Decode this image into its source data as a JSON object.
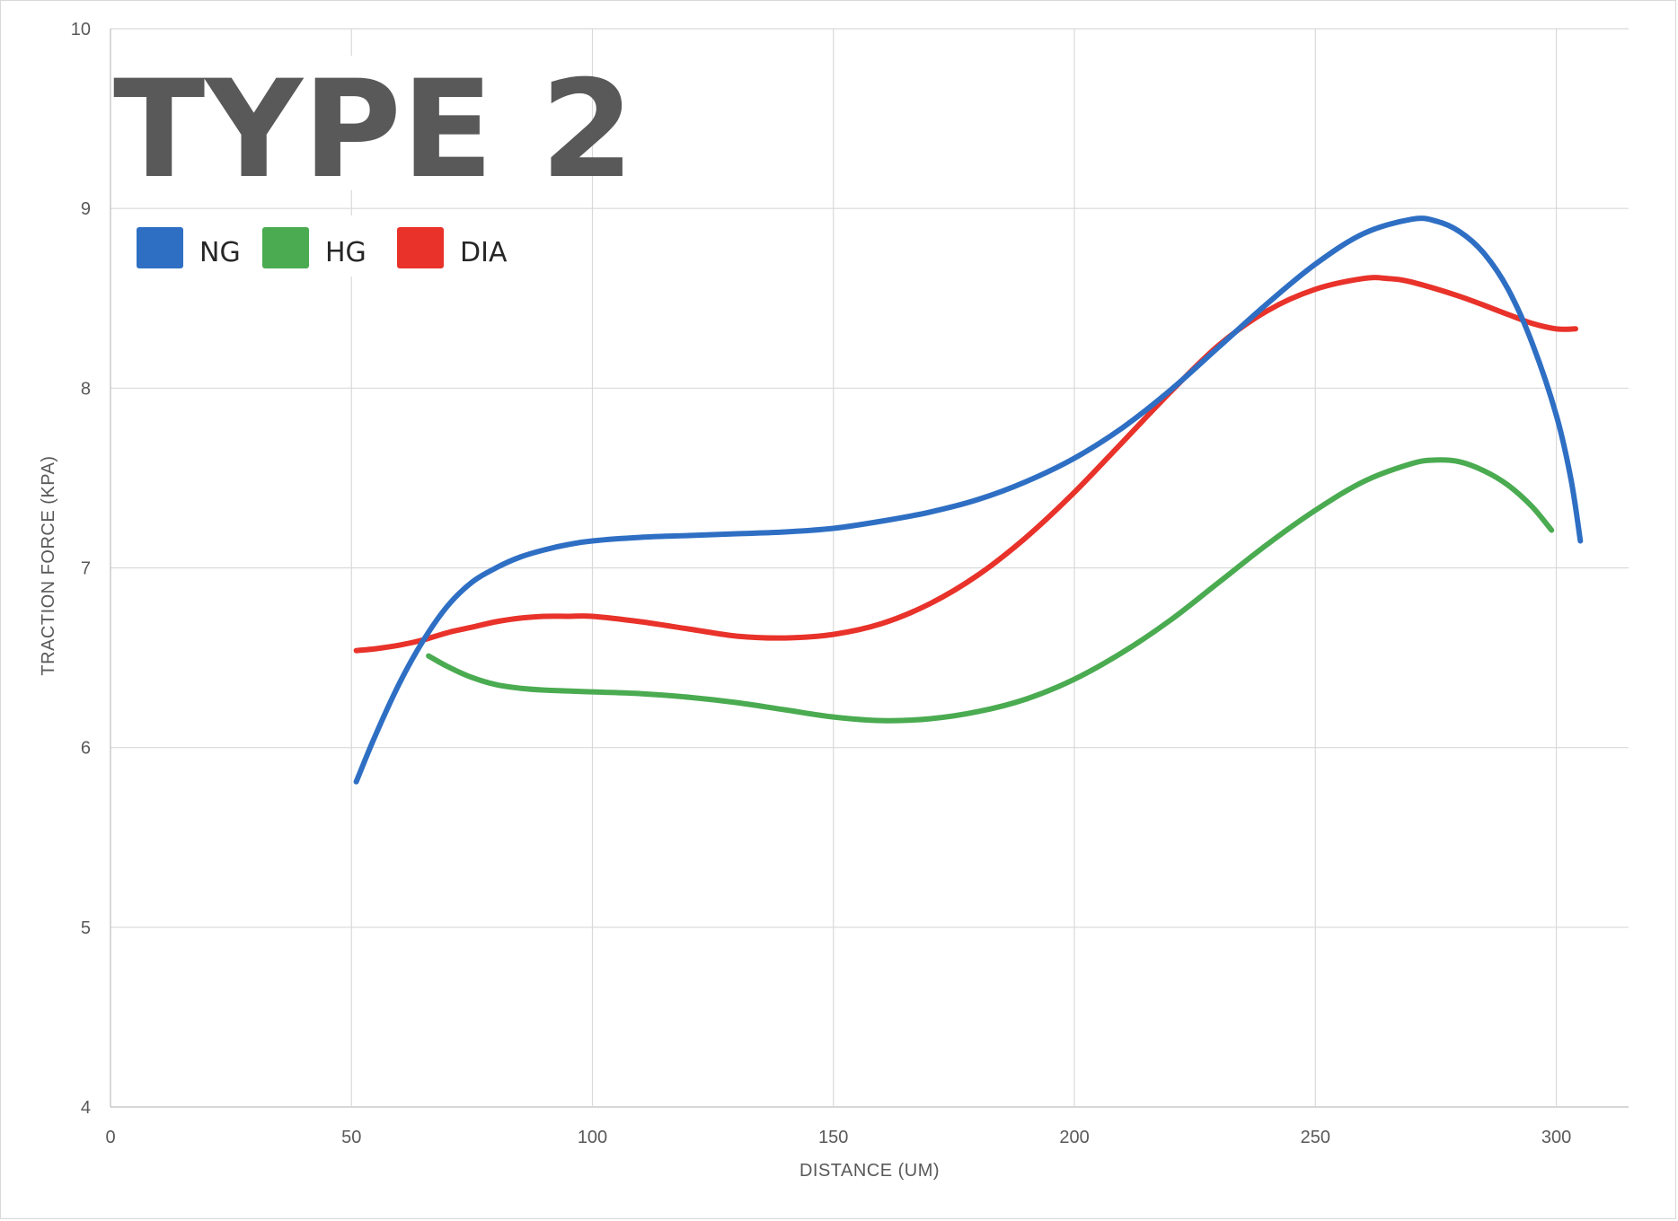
{
  "chart_data": {
    "type": "line",
    "title": "TYPE 2",
    "xlabel": "DISTANCE (UM)",
    "ylabel": "TRACTION FORCE (KPA)",
    "xlim": [
      0,
      315
    ],
    "ylim": [
      4,
      10
    ],
    "xticks": [
      "0",
      "50",
      "100",
      "150",
      "200",
      "250",
      "300"
    ],
    "yticks": [
      "4",
      "5",
      "6",
      "7",
      "8",
      "9",
      "10"
    ],
    "grid": true,
    "legend_position": "top-left",
    "series": [
      {
        "name": "NG",
        "color": "#2e6fc4",
        "points": [
          [
            51,
            5.81
          ],
          [
            55,
            6.07
          ],
          [
            60,
            6.36
          ],
          [
            65,
            6.6
          ],
          [
            70,
            6.79
          ],
          [
            75,
            6.92
          ],
          [
            80,
            7.0
          ],
          [
            85,
            7.06
          ],
          [
            90,
            7.1
          ],
          [
            95,
            7.13
          ],
          [
            100,
            7.15
          ],
          [
            110,
            7.17
          ],
          [
            120,
            7.18
          ],
          [
            130,
            7.19
          ],
          [
            140,
            7.2
          ],
          [
            150,
            7.22
          ],
          [
            160,
            7.26
          ],
          [
            170,
            7.31
          ],
          [
            180,
            7.38
          ],
          [
            190,
            7.48
          ],
          [
            200,
            7.61
          ],
          [
            210,
            7.78
          ],
          [
            220,
            7.99
          ],
          [
            230,
            8.23
          ],
          [
            240,
            8.47
          ],
          [
            250,
            8.69
          ],
          [
            260,
            8.86
          ],
          [
            270,
            8.94
          ],
          [
            275,
            8.93
          ],
          [
            280,
            8.87
          ],
          [
            285,
            8.75
          ],
          [
            290,
            8.55
          ],
          [
            295,
            8.25
          ],
          [
            300,
            7.85
          ],
          [
            303,
            7.5
          ],
          [
            305,
            7.15
          ]
        ]
      },
      {
        "name": "HG",
        "color": "#4aab51",
        "points": [
          [
            66,
            6.51
          ],
          [
            70,
            6.45
          ],
          [
            75,
            6.39
          ],
          [
            80,
            6.35
          ],
          [
            85,
            6.33
          ],
          [
            90,
            6.32
          ],
          [
            100,
            6.31
          ],
          [
            110,
            6.3
          ],
          [
            120,
            6.28
          ],
          [
            130,
            6.25
          ],
          [
            140,
            6.21
          ],
          [
            150,
            6.17
          ],
          [
            160,
            6.15
          ],
          [
            170,
            6.16
          ],
          [
            180,
            6.2
          ],
          [
            190,
            6.27
          ],
          [
            200,
            6.38
          ],
          [
            210,
            6.53
          ],
          [
            220,
            6.71
          ],
          [
            230,
            6.92
          ],
          [
            240,
            7.13
          ],
          [
            250,
            7.32
          ],
          [
            260,
            7.48
          ],
          [
            270,
            7.58
          ],
          [
            275,
            7.6
          ],
          [
            280,
            7.59
          ],
          [
            285,
            7.54
          ],
          [
            290,
            7.46
          ],
          [
            295,
            7.34
          ],
          [
            299,
            7.21
          ]
        ]
      },
      {
        "name": "DIA",
        "color": "#e8322a",
        "points": [
          [
            51,
            6.54
          ],
          [
            55,
            6.55
          ],
          [
            60,
            6.57
          ],
          [
            65,
            6.6
          ],
          [
            70,
            6.64
          ],
          [
            75,
            6.67
          ],
          [
            80,
            6.7
          ],
          [
            85,
            6.72
          ],
          [
            90,
            6.73
          ],
          [
            95,
            6.73
          ],
          [
            100,
            6.73
          ],
          [
            110,
            6.7
          ],
          [
            120,
            6.66
          ],
          [
            130,
            6.62
          ],
          [
            140,
            6.61
          ],
          [
            150,
            6.63
          ],
          [
            160,
            6.69
          ],
          [
            170,
            6.8
          ],
          [
            180,
            6.96
          ],
          [
            190,
            7.17
          ],
          [
            200,
            7.42
          ],
          [
            210,
            7.7
          ],
          [
            220,
            7.98
          ],
          [
            230,
            8.24
          ],
          [
            240,
            8.43
          ],
          [
            250,
            8.55
          ],
          [
            260,
            8.61
          ],
          [
            265,
            8.61
          ],
          [
            270,
            8.59
          ],
          [
            280,
            8.51
          ],
          [
            290,
            8.41
          ],
          [
            295,
            8.36
          ],
          [
            300,
            8.33
          ],
          [
            304,
            8.33
          ]
        ]
      }
    ]
  }
}
